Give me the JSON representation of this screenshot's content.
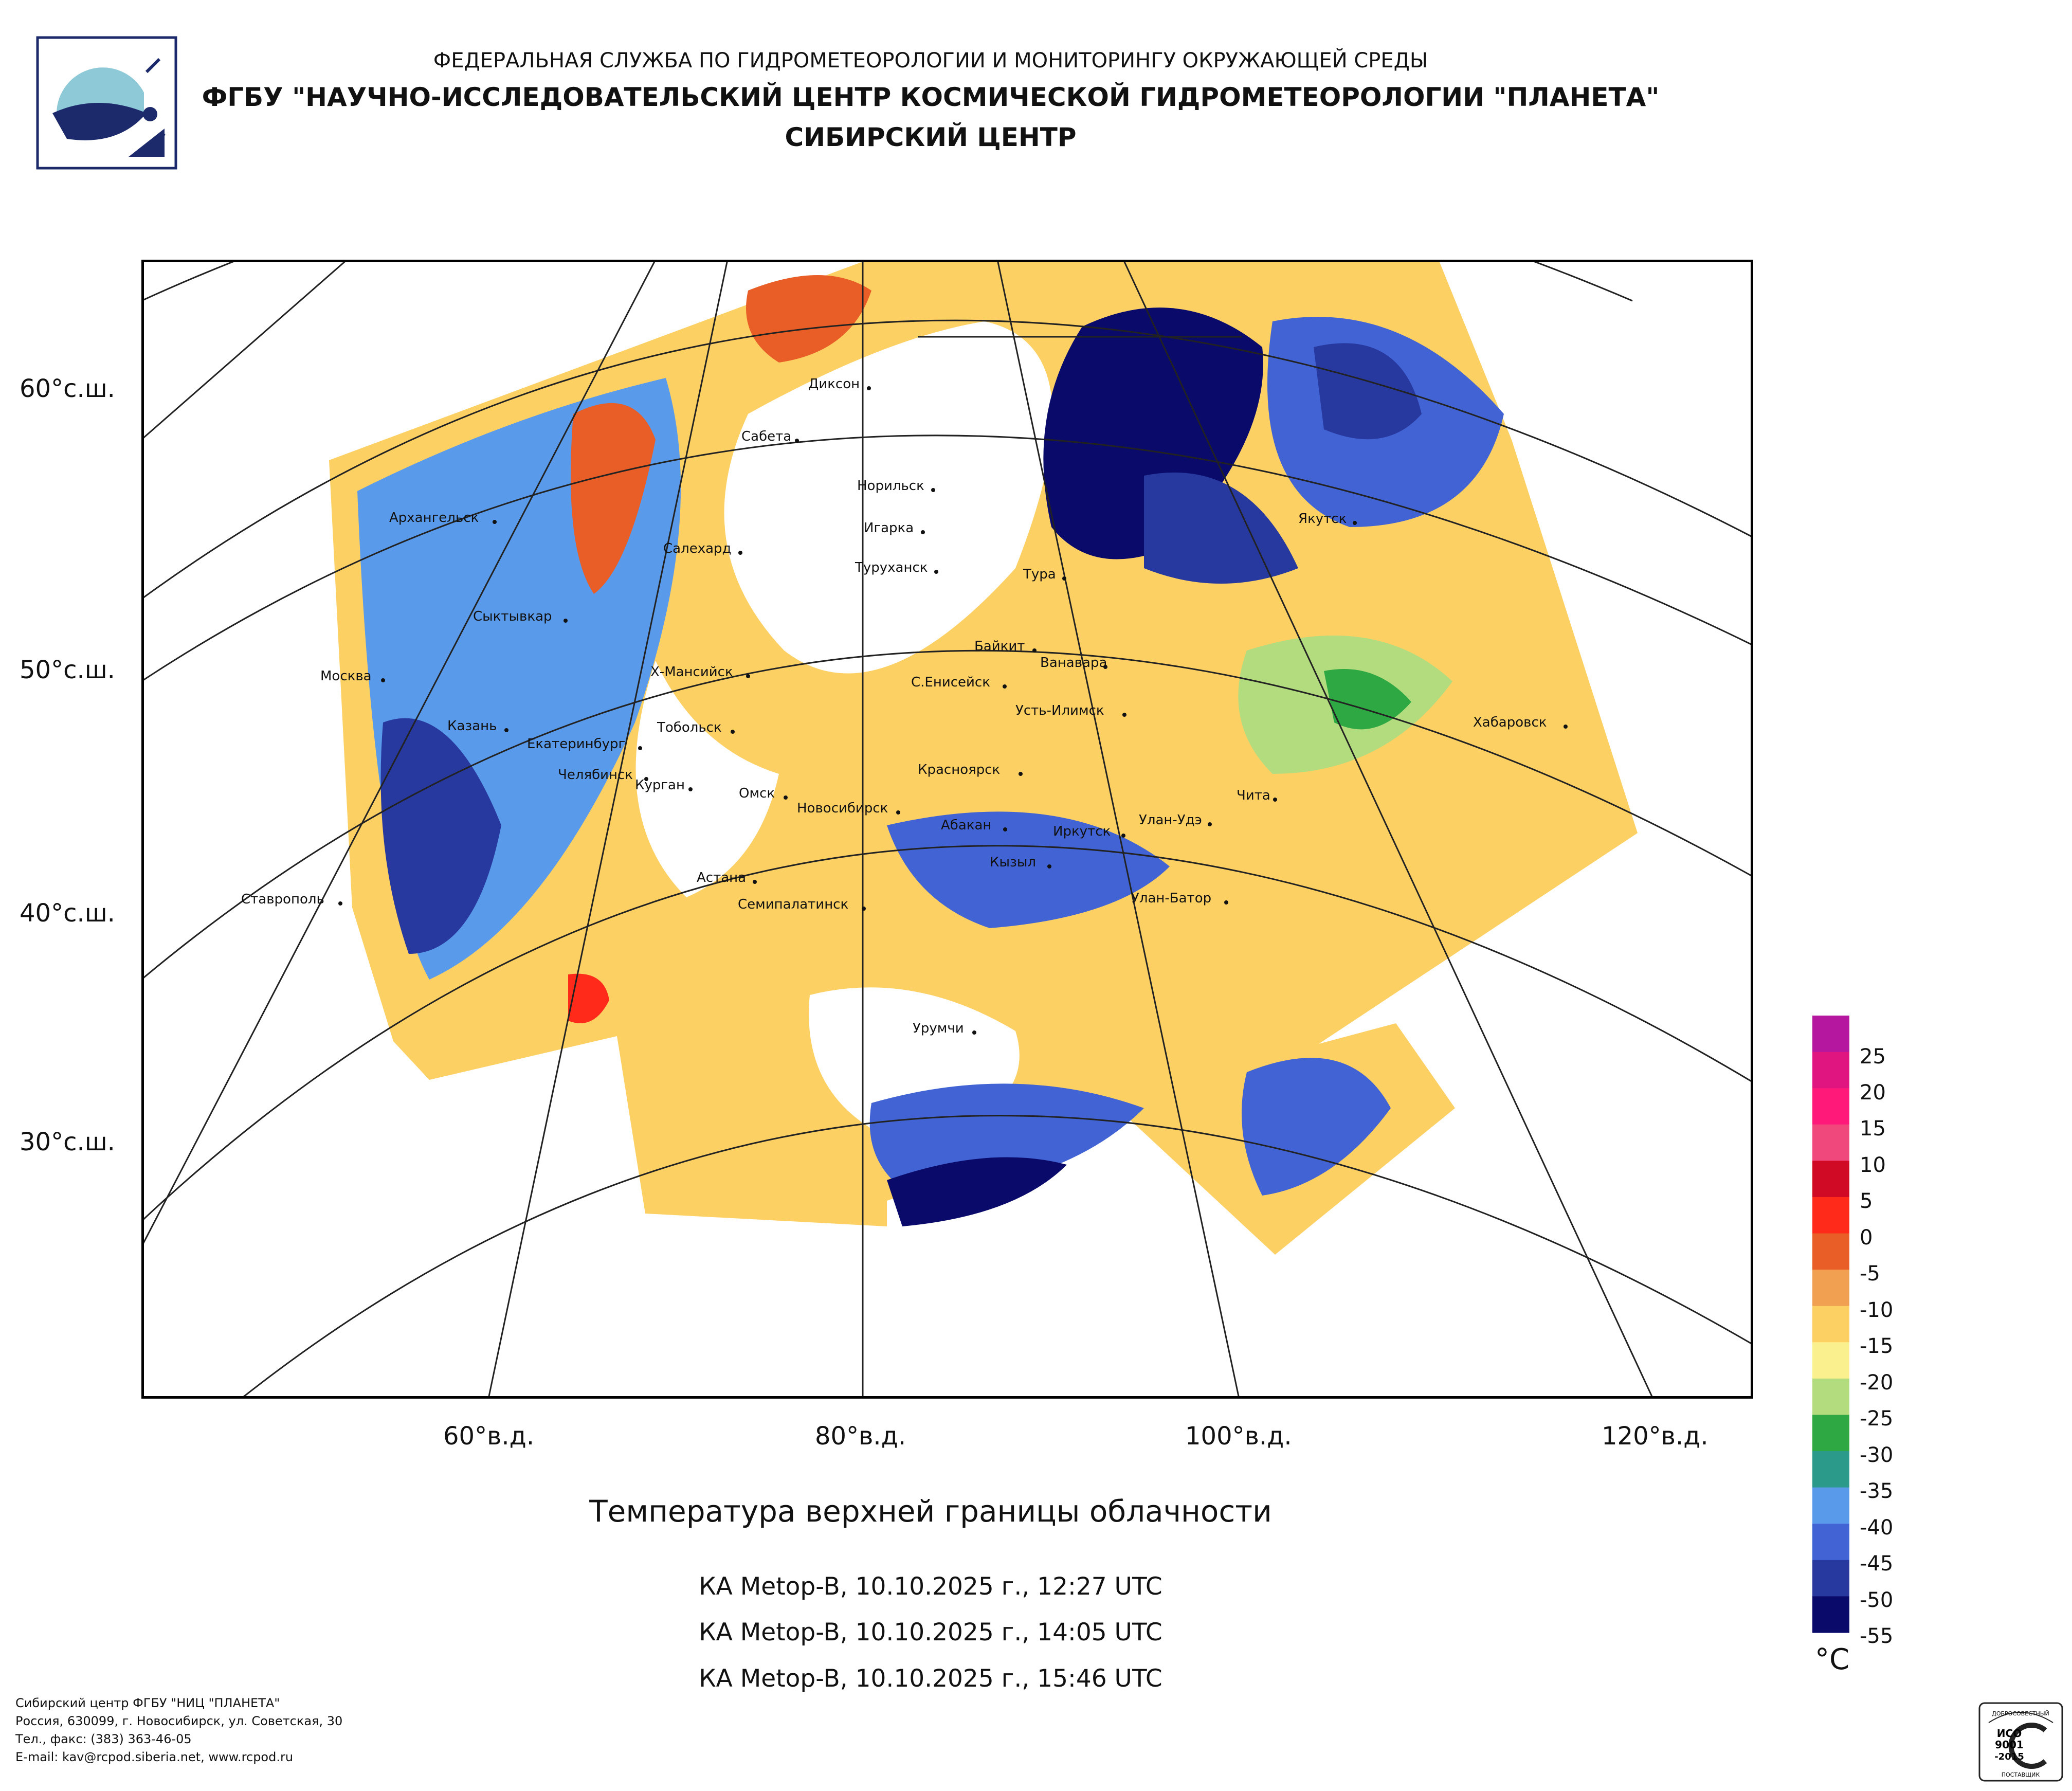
{
  "header": {
    "agency_line": "ФЕДЕРАЛЬНАЯ СЛУЖБА ПО ГИДРОМЕТЕОРОЛОГИИ И МОНИТОРИНГУ ОКРУЖАЮЩЕЙ СРЕДЫ",
    "institute_line": "ФГБУ \"НАУЧНО-ИССЛЕДОВАТЕЛЬСКИЙ ЦЕНТР КОСМИЧЕСКОЙ ГИДРОМЕТЕОРОЛОГИИ \"ПЛАНЕТА\"",
    "center_line": "СИБИРСКИЙ ЦЕНТР"
  },
  "map": {
    "title": "Температура верхней границы облачности",
    "passes": [
      "КА Metop-B, 10.10.2025 г., 12:27 UTC",
      "КА Metop-B, 10.10.2025 г., 14:05 UTC",
      "КА Metop-B, 10.10.2025 г., 15:46 UTC"
    ],
    "lat_labels": [
      "60°с.ш.",
      "50°с.ш.",
      "40°с.ш.",
      "30°с.ш."
    ],
    "lon_labels": [
      "60°в.д.",
      "80°в.д.",
      "100°в.д.",
      "120°в.д."
    ],
    "cities": [
      "Диксон",
      "Сабета",
      "Норильск",
      "Архангельск",
      "Салехард",
      "Игарка",
      "Туруханск",
      "Якутск",
      "Тура",
      "Сыктывкар",
      "Байкит",
      "Ванавара",
      "Москва",
      "Х-Мансийск",
      "С.Енисейск",
      "Усть-Илимск",
      "Казань",
      "Тобольск",
      "Хабаровск",
      "Екатеринбург",
      "Челябинск",
      "Курган",
      "Красноярск",
      "Омск",
      "Чита",
      "Новосибирск",
      "Абакан",
      "Улан-Удэ",
      "Иркутск",
      "Кызыл",
      "Астана",
      "Ставрополь",
      "Семипалатинск",
      "Улан-Батор",
      "Урумчи"
    ]
  },
  "legend": {
    "unit": "°C",
    "ticks": [
      "25",
      "20",
      "15",
      "10",
      "5",
      "0",
      "-5",
      "-10",
      "-15",
      "-20",
      "-25",
      "-30",
      "-35",
      "-40",
      "-45",
      "-50",
      "-55"
    ],
    "colors": [
      "#b5179e",
      "#e0157f",
      "#ff1a7a",
      "#f0487c",
      "#d00a24",
      "#ff2a1a",
      "#e85e26",
      "#f0a050",
      "#fdd064",
      "#fbf08e",
      "#b2dc7e",
      "#2ea843",
      "#2b9a8a",
      "#5a9aea",
      "#4163d4",
      "#27389e",
      "#0a0a6a"
    ]
  },
  "footer": {
    "lines": [
      "Сибирский центр ФГБУ \"НИЦ \"ПЛАНЕТА\"",
      "Россия, 630099, г. Новосибирск, ул. Советская, 30",
      "Тел., факс: (383) 363-46-05",
      "E-mail: kav@rcpod.siberia.net, www.rcpod.ru"
    ]
  },
  "certification": {
    "top": "ДОБРОСОВЕСТНЫЙ",
    "iso": "ИСО",
    "number": "9001",
    "year": "-2015",
    "bottom": "ПОСТАВЩИК"
  }
}
